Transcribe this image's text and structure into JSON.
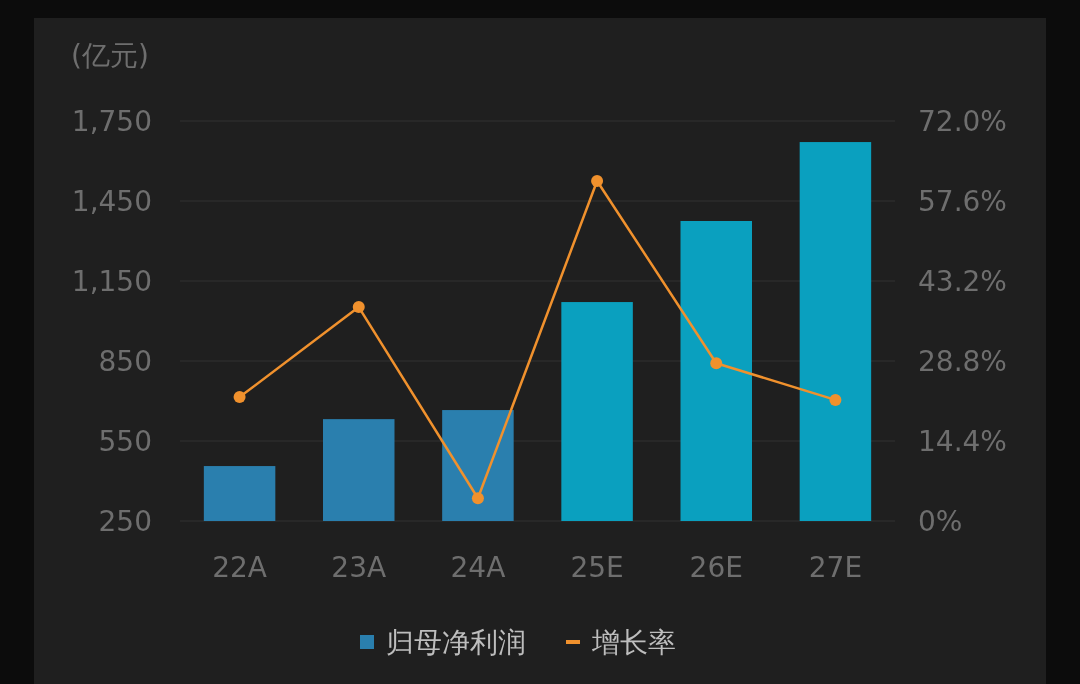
{
  "chart_data": {
    "type": "bar",
    "ylabel": "(亿元)",
    "categories": [
      "22A",
      "23A",
      "24A",
      "25E",
      "26E",
      "27E"
    ],
    "series": [
      {
        "name": "归母净利润",
        "color": "#2a7fae",
        "colors": [
          "#2a7fae",
          "#2a7fae",
          "#2a7fae",
          "#0aa0bf",
          "#0aa0bf",
          "#0aa0bf"
        ],
        "values": [
          456,
          632,
          666,
          1071,
          1375,
          1671
        ]
      },
      {
        "name": "增长率",
        "type": "line",
        "axis": "y2",
        "color": "#f0912d",
        "marker": "circle",
        "values": [
          22.3,
          38.5,
          4.1,
          61.2,
          28.4,
          21.8
        ]
      }
    ],
    "ylim": [
      250,
      1750
    ],
    "yticks": [
      {
        "value": 250,
        "label": "250"
      },
      {
        "value": 550,
        "label": "550"
      },
      {
        "value": 850,
        "label": "850"
      },
      {
        "value": 1150,
        "label": "1,150"
      },
      {
        "value": 1450,
        "label": "1,450"
      },
      {
        "value": 1750,
        "label": "1,750"
      }
    ],
    "y2lim": [
      0,
      72
    ],
    "y2ticks": [
      {
        "value": 0,
        "label": "0%"
      },
      {
        "value": 14.4,
        "label": "14.4%"
      },
      {
        "value": 28.8,
        "label": "28.8%"
      },
      {
        "value": 43.2,
        "label": "43.2%"
      },
      {
        "value": 57.6,
        "label": "57.6%"
      },
      {
        "value": 72,
        "label": "72.0%"
      }
    ],
    "grid": "y",
    "legend": "bottom"
  }
}
